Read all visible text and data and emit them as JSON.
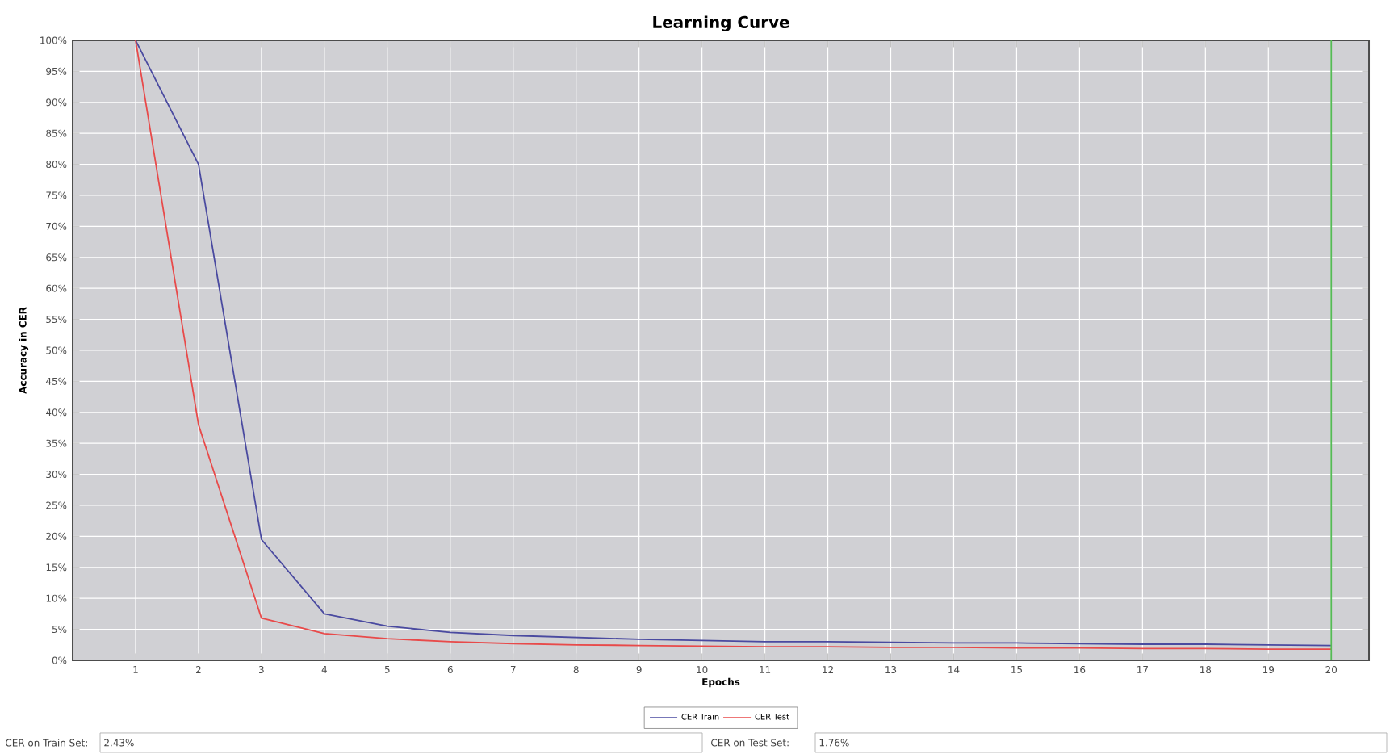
{
  "chart_data": {
    "type": "line",
    "title": "Learning Curve",
    "xlabel": "Epochs",
    "ylabel": "Accuracy in CER",
    "x": [
      1,
      2,
      3,
      4,
      5,
      6,
      7,
      8,
      9,
      10,
      11,
      12,
      13,
      14,
      15,
      16,
      17,
      18,
      19,
      20
    ],
    "series": [
      {
        "name": "CER Train",
        "color": "#4a4aa0",
        "values": [
          100,
          80,
          19.5,
          7.5,
          5.5,
          4.5,
          4,
          3.7,
          3.4,
          3.2,
          3,
          3,
          2.9,
          2.8,
          2.8,
          2.7,
          2.6,
          2.6,
          2.5,
          2.4
        ]
      },
      {
        "name": "CER Test",
        "color": "#e84a4a",
        "values": [
          100,
          38,
          6.8,
          4.3,
          3.5,
          3,
          2.7,
          2.5,
          2.4,
          2.3,
          2.2,
          2.2,
          2.1,
          2.1,
          2,
          2,
          1.9,
          1.9,
          1.8,
          1.8
        ]
      }
    ],
    "xlim": [
      0,
      20.6
    ],
    "ylim": [
      0,
      100
    ],
    "xticks": [
      1,
      2,
      3,
      4,
      5,
      6,
      7,
      8,
      9,
      10,
      11,
      12,
      13,
      14,
      15,
      16,
      17,
      18,
      19,
      20
    ],
    "yticks": [
      {
        "value": 0,
        "label": "0%"
      },
      {
        "value": 5,
        "label": "5%"
      },
      {
        "value": 10,
        "label": "10%"
      },
      {
        "value": 15,
        "label": "15%"
      },
      {
        "value": 20,
        "label": "20%"
      },
      {
        "value": 25,
        "label": "25%"
      },
      {
        "value": 30,
        "label": "30%"
      },
      {
        "value": 35,
        "label": "35%"
      },
      {
        "value": 40,
        "label": "40%"
      },
      {
        "value": 45,
        "label": "45%"
      },
      {
        "value": 50,
        "label": "50%"
      },
      {
        "value": 55,
        "label": "55%"
      },
      {
        "value": 60,
        "label": "60%"
      },
      {
        "value": 65,
        "label": "65%"
      },
      {
        "value": 70,
        "label": "70%"
      },
      {
        "value": 75,
        "label": "75%"
      },
      {
        "value": 80,
        "label": "80%"
      },
      {
        "value": 85,
        "label": "85%"
      },
      {
        "value": 90,
        "label": "90%"
      },
      {
        "value": 95,
        "label": "95%"
      },
      {
        "value": 100,
        "label": "100%"
      }
    ],
    "ref_lines": [
      {
        "axis": "x",
        "value": 20,
        "color": "#55bb55"
      }
    ],
    "annotations": [
      "CER on Train Set:",
      "2.43%",
      "CER on Test Set:",
      "1.76%"
    ],
    "grid": true,
    "legend": "bottom",
    "marker": "none",
    "line_style": "solid"
  }
}
